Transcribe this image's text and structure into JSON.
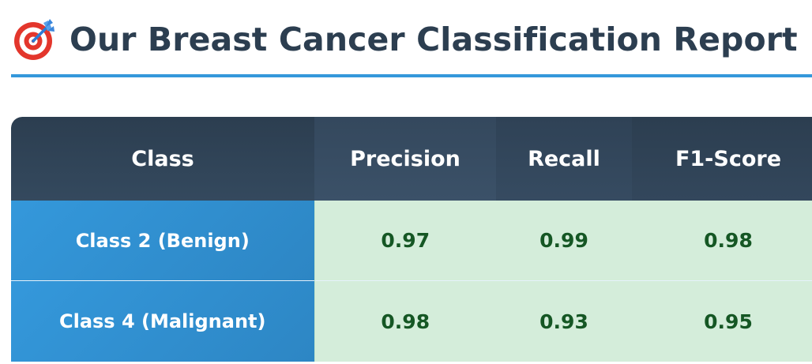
{
  "report": {
    "title": "Our Breast Cancer Classification Report",
    "icon": "direct-hit-target-icon"
  },
  "table": {
    "headers": [
      "Class",
      "Precision",
      "Recall",
      "F1-Score"
    ],
    "rows": [
      {
        "class": "Class 2 (Benign)",
        "precision": "0.97",
        "recall": "0.99",
        "f1": "0.98"
      },
      {
        "class": "Class 4 (Malignant)",
        "precision": "0.98",
        "recall": "0.93",
        "f1": "0.95"
      }
    ]
  },
  "colors": {
    "title": "#2c3e50",
    "accent": "#3498db",
    "header_bg": "#2c3e50",
    "metric_bg": "#d4edda",
    "metric_text": "#155724"
  }
}
